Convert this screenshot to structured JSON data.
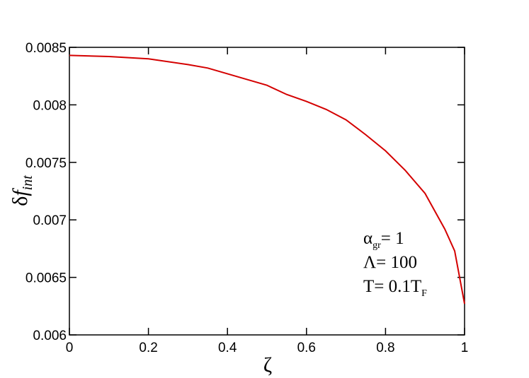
{
  "chart_data": {
    "type": "line",
    "xlabel": "ζ",
    "ylabel": {
      "main": "δ",
      "italic": "f",
      "sub": "int"
    },
    "x": [
      0,
      0.1,
      0.2,
      0.3,
      0.35,
      0.4,
      0.45,
      0.5,
      0.55,
      0.6,
      0.65,
      0.7,
      0.75,
      0.8,
      0.85,
      0.9,
      0.95,
      0.975,
      1.0
    ],
    "series": [
      {
        "color": "#d40000",
        "values": [
          0.00843,
          0.00842,
          0.0084,
          0.00835,
          0.00832,
          0.00827,
          0.00822,
          0.00817,
          0.00809,
          0.00803,
          0.00796,
          0.00787,
          0.00774,
          0.0076,
          0.00743,
          0.00723,
          0.00692,
          0.00673,
          0.00627
        ]
      }
    ],
    "xlim": [
      0,
      1
    ],
    "xticks": [
      0,
      0.2,
      0.4,
      0.6,
      0.8,
      1
    ],
    "ylim": [
      0.006,
      0.0085
    ],
    "yticks": [
      0.006,
      0.0065,
      0.007,
      0.0075,
      0.008,
      0.0085
    ],
    "annotations": [
      {
        "text": "α",
        "sub": "gr",
        "after": "= 1"
      },
      {
        "text": "Λ= 100"
      },
      {
        "text": "T= 0.1T",
        "sub": "F"
      }
    ]
  }
}
